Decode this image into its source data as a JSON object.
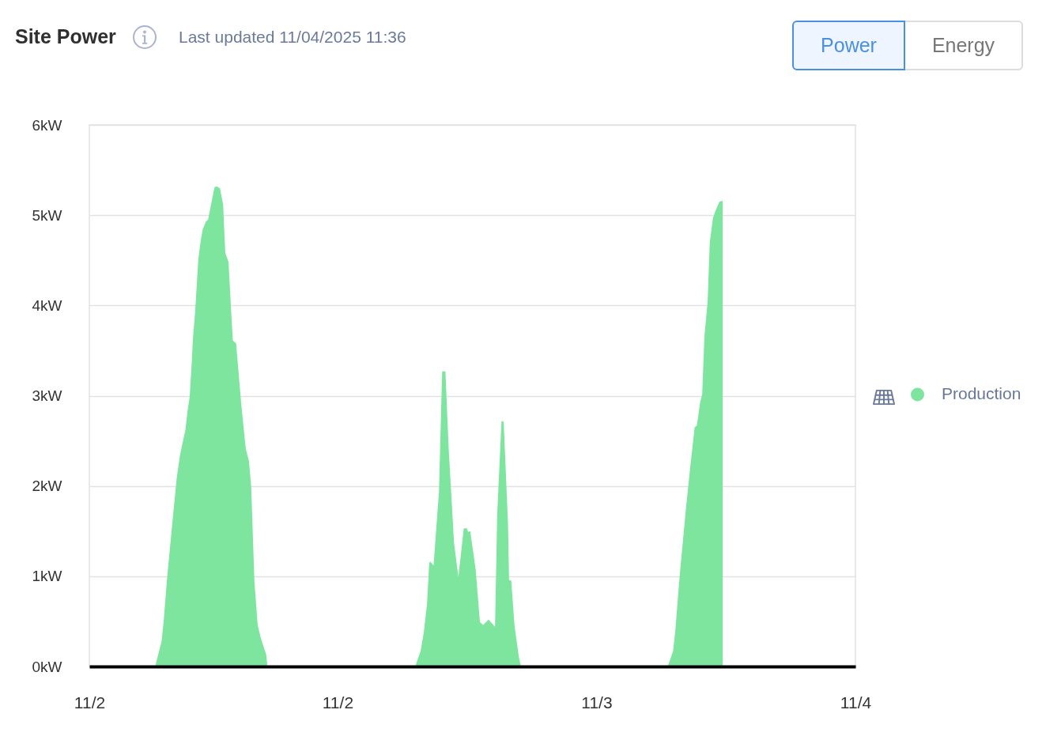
{
  "chart_data": {
    "type": "area",
    "title": "Site Power",
    "subtitle": "Last updated 11/04/2025 11:36",
    "annotations": [
      "Power",
      "Energy"
    ],
    "x": [
      "2025-11-02T00:00",
      "2025-11-02T06:06",
      "2025-11-02T06:42",
      "2025-11-02T06:54",
      "2025-11-02T07:12",
      "2025-11-02T07:42",
      "2025-11-02T08:06",
      "2025-11-02T08:24",
      "2025-11-02T08:54",
      "2025-11-02T09:06",
      "2025-11-02T09:18",
      "2025-11-02T09:30",
      "2025-11-02T09:36",
      "2025-11-02T09:48",
      "2025-11-02T10:06",
      "2025-11-02T10:18",
      "2025-11-02T10:30",
      "2025-11-02T10:48",
      "2025-11-02T11:00",
      "2025-11-02T11:36",
      "2025-11-02T11:48",
      "2025-11-02T12:06",
      "2025-11-02T12:24",
      "2025-11-02T12:36",
      "2025-11-02T12:54",
      "2025-11-02T13:12",
      "2025-11-02T13:18",
      "2025-11-02T13:36",
      "2025-11-02T14:06",
      "2025-11-02T14:30",
      "2025-11-02T14:48",
      "2025-11-02T15:00",
      "2025-11-02T15:18",
      "2025-11-02T15:36",
      "2025-11-02T15:54",
      "2025-11-02T16:24",
      "2025-11-02T16:30",
      "2025-11-03T06:12",
      "2025-11-03T06:42",
      "2025-11-03T07:00",
      "2025-11-03T07:18",
      "2025-11-03T07:30",
      "2025-11-03T07:36",
      "2025-11-03T07:54",
      "2025-11-03T08:24",
      "2025-11-03T08:42",
      "2025-11-03T09:00",
      "2025-11-03T09:18",
      "2025-11-03T09:48",
      "2025-11-03T10:12",
      "2025-11-03T10:42",
      "2025-11-03T11:00",
      "2025-11-03T11:06",
      "2025-11-03T11:18",
      "2025-11-03T11:48",
      "2025-11-03T12:12",
      "2025-11-03T12:30",
      "2025-11-03T13:00",
      "2025-11-03T13:36",
      "2025-11-03T13:48",
      "2025-11-03T14:12",
      "2025-11-03T14:24",
      "2025-11-03T14:48",
      "2025-11-03T14:54",
      "2025-11-03T15:06",
      "2025-11-03T15:24",
      "2025-11-03T15:48",
      "2025-11-03T16:00",
      "2025-11-04T05:36",
      "2025-11-04T06:06",
      "2025-11-04T06:18",
      "2025-11-04T06:42",
      "2025-11-04T07:18",
      "2025-11-04T07:42",
      "2025-11-04T08:06",
      "2025-11-04T08:18",
      "2025-11-04T08:36",
      "2025-11-04T08:48",
      "2025-11-04T09:00",
      "2025-11-04T09:18",
      "2025-11-04T09:30",
      "2025-11-04T09:48",
      "2025-11-04T10:06",
      "2025-11-04T10:24",
      "2025-11-04T10:42"
    ],
    "series": [
      {
        "name": "Production",
        "color": "#7de59e",
        "values": [
          0,
          0,
          0.28,
          0.52,
          0.97,
          1.6,
          2.09,
          2.34,
          2.62,
          2.83,
          2.99,
          3.39,
          3.63,
          3.92,
          4.51,
          4.7,
          4.84,
          4.93,
          4.95,
          5.31,
          5.32,
          5.3,
          5.12,
          4.58,
          4.48,
          3.81,
          3.61,
          3.58,
          2.88,
          2.41,
          2.27,
          1.99,
          0.94,
          0.46,
          0.31,
          0.13,
          0,
          0,
          0.17,
          0.38,
          0.7,
          1.15,
          1.16,
          1.12,
          1.93,
          3.27,
          3.27,
          2.42,
          1.37,
          0.99,
          1.53,
          1.53,
          1.49,
          1.5,
          1.08,
          0.49,
          0.46,
          0.52,
          0.44,
          1.69,
          2.72,
          2.71,
          1.58,
          0.96,
          0.95,
          0.46,
          0.11,
          0,
          0,
          0.17,
          0.39,
          0.99,
          1.76,
          2.22,
          2.65,
          2.67,
          2.92,
          3.02,
          3.65,
          4.04,
          4.7,
          4.97,
          5.07,
          5.15,
          5.16
        ]
      }
    ],
    "xlim": [
      "2025-11-02T00:00",
      "2025-11-04T23:00"
    ],
    "xticks": [
      {
        "value": "2025-11-02T00:00",
        "label": "11/2"
      },
      {
        "value": "2025-11-02T23:00",
        "label": "11/2"
      },
      {
        "value": "2025-11-03T23:00",
        "label": "11/3"
      },
      {
        "value": "2025-11-04T23:00",
        "label": "11/4"
      }
    ],
    "ylim": [
      0,
      6
    ],
    "yticks": [
      {
        "value": 0,
        "label": "0kW"
      },
      {
        "value": 1,
        "label": "1kW"
      },
      {
        "value": 2,
        "label": "2kW"
      },
      {
        "value": 3,
        "label": "3kW"
      },
      {
        "value": 4,
        "label": "4kW"
      },
      {
        "value": 5,
        "label": "5kW"
      },
      {
        "value": 6,
        "label": "6kW"
      }
    ],
    "grid": "y",
    "legend": "right"
  }
}
